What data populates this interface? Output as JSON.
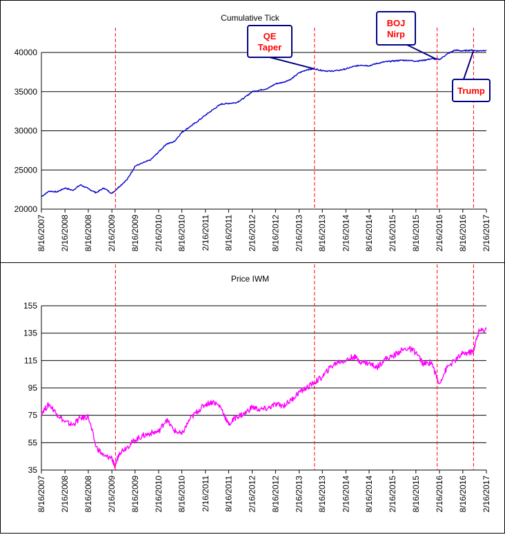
{
  "chart_data": [
    {
      "type": "line",
      "title": "Cumulative Tick",
      "xlabel": "",
      "ylabel": "",
      "ylim": [
        20000,
        40000
      ],
      "yticks": [
        "20000",
        "25000",
        "30000",
        "35000",
        "40000"
      ],
      "grid": "horizontal",
      "xtick_labels": [
        "8/16/2007",
        "2/16/2008",
        "8/16/2008",
        "2/16/2009",
        "8/16/2009",
        "2/16/2010",
        "8/16/2010",
        "2/16/2011",
        "8/16/2011",
        "2/16/2012",
        "8/16/2012",
        "2/16/2013",
        "8/16/2013",
        "2/16/2014",
        "8/16/2014",
        "2/16/2015",
        "8/16/2015",
        "2/16/2016",
        "8/16/2016",
        "2/16/2017"
      ],
      "series_color": "#0000cc",
      "series": [
        {
          "x": [
            "8/16/2007",
            "10/16/2007",
            "12/16/2007",
            "2/16/2008",
            "4/16/2008",
            "6/16/2008",
            "8/16/2008",
            "10/16/2008",
            "12/16/2008",
            "2/16/2009",
            "4/16/2009",
            "6/16/2009",
            "8/16/2009",
            "10/16/2009",
            "12/16/2009",
            "2/16/2010",
            "4/16/2010",
            "6/16/2010",
            "8/16/2010",
            "10/16/2010",
            "12/16/2010",
            "2/16/2011",
            "4/16/2011",
            "6/16/2011",
            "8/16/2011",
            "10/16/2011",
            "12/16/2011",
            "2/16/2012",
            "4/16/2012",
            "6/16/2012",
            "8/16/2012",
            "10/16/2012",
            "12/16/2012",
            "2/16/2013",
            "4/16/2013",
            "6/16/2013",
            "8/16/2013",
            "10/16/2013",
            "12/16/2013",
            "2/16/2014",
            "4/16/2014",
            "6/16/2014",
            "8/16/2014",
            "10/16/2014",
            "12/16/2014",
            "2/16/2015",
            "4/16/2015",
            "6/16/2015",
            "8/16/2015",
            "10/16/2015",
            "12/16/2015",
            "2/16/2016",
            "4/16/2016",
            "6/16/2016",
            "8/16/2016",
            "10/16/2016",
            "12/16/2016",
            "2/16/2017"
          ],
          "values": [
            21600,
            22300,
            22200,
            22700,
            22400,
            23100,
            22600,
            22100,
            22700,
            22000,
            22900,
            23800,
            25500,
            25900,
            26300,
            27300,
            28300,
            28600,
            29800,
            30500,
            31200,
            32000,
            32700,
            33400,
            33500,
            33600,
            34200,
            35000,
            35200,
            35400,
            36000,
            36200,
            36600,
            37400,
            37800,
            37900,
            37700,
            37600,
            37700,
            37900,
            38200,
            38400,
            38300,
            38600,
            38800,
            38900,
            39000,
            39000,
            38900,
            39000,
            39200,
            39100,
            39800,
            40300,
            40200,
            40300,
            40200,
            40300
          ]
        }
      ],
      "annotations": [
        {
          "lines": [
            "QE",
            "Taper"
          ],
          "date": "6/16/2013"
        },
        {
          "lines": [
            "BOJ",
            "Nirp"
          ],
          "date": "1/29/2016"
        },
        {
          "lines": [
            "Trump"
          ],
          "date": "11/8/2016"
        },
        {
          "lines": [],
          "date": "3/16/2009"
        }
      ]
    },
    {
      "type": "line",
      "title": "Price IWM",
      "xlabel": "",
      "ylabel": "",
      "ylim": [
        35,
        155
      ],
      "yticks": [
        "35",
        "55",
        "75",
        "95",
        "115",
        "135",
        "155"
      ],
      "grid": "horizontal",
      "xtick_labels": [
        "8/16/2007",
        "2/16/2008",
        "8/16/2008",
        "2/16/2009",
        "8/16/2009",
        "2/16/2010",
        "8/16/2010",
        "2/16/2011",
        "8/16/2011",
        "2/16/2012",
        "8/16/2012",
        "2/16/2013",
        "8/16/2013",
        "2/16/2014",
        "8/16/2014",
        "2/16/2015",
        "8/16/2015",
        "2/16/2016",
        "8/16/2016",
        "2/16/2017"
      ],
      "series_color": "#ff00ff",
      "series": [
        {
          "x": [
            "8/16/2007",
            "10/16/2007",
            "12/16/2007",
            "2/16/2008",
            "4/16/2008",
            "6/16/2008",
            "8/16/2008",
            "10/16/2008",
            "12/16/2008",
            "2/16/2009",
            "3/9/2009",
            "4/16/2009",
            "6/16/2009",
            "8/16/2009",
            "10/16/2009",
            "12/16/2009",
            "2/16/2010",
            "4/16/2010",
            "6/16/2010",
            "8/16/2010",
            "10/16/2010",
            "12/16/2010",
            "2/16/2011",
            "4/16/2011",
            "6/16/2011",
            "8/16/2011",
            "10/16/2011",
            "12/16/2011",
            "2/16/2012",
            "4/16/2012",
            "6/16/2012",
            "8/16/2012",
            "10/16/2012",
            "12/16/2012",
            "2/16/2013",
            "4/16/2013",
            "6/16/2013",
            "8/16/2013",
            "10/16/2013",
            "12/16/2013",
            "2/16/2014",
            "4/16/2014",
            "6/16/2014",
            "8/16/2014",
            "10/16/2014",
            "12/16/2014",
            "2/16/2015",
            "4/16/2015",
            "6/16/2015",
            "8/16/2015",
            "10/16/2015",
            "12/16/2015",
            "2/11/2016",
            "4/16/2016",
            "6/16/2016",
            "8/16/2016",
            "10/16/2016",
            "11/8/2016",
            "12/16/2016",
            "2/16/2017"
          ],
          "values": [
            77,
            83,
            76,
            70,
            68,
            73,
            74,
            52,
            45,
            44,
            37,
            48,
            52,
            57,
            60,
            62,
            63,
            72,
            64,
            61,
            72,
            78,
            83,
            85,
            81,
            68,
            74,
            76,
            81,
            79,
            80,
            83,
            82,
            86,
            92,
            95,
            99,
            103,
            110,
            114,
            115,
            118,
            114,
            113,
            110,
            116,
            118,
            122,
            124,
            121,
            112,
            114,
            98,
            110,
            115,
            120,
            121,
            122,
            136,
            138
          ]
        }
      ]
    }
  ]
}
